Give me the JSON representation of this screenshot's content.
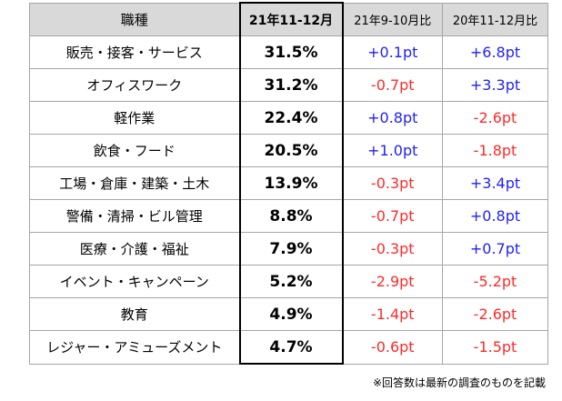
{
  "colors": {
    "header_bg": "#d9d9d9",
    "positive": "#1f1fff",
    "negative": "#ff2a2a",
    "border": "#a6a6a6"
  },
  "table": {
    "headers": [
      "職種",
      "21年11-12月",
      "21年9-10月比",
      "20年11-12月比"
    ],
    "rows": [
      {
        "job": "販売・接客・サービス",
        "share": "31.5%",
        "vs_prev": "+0.1pt",
        "vs_year": "+6.8pt"
      },
      {
        "job": "オフィスワーク",
        "share": "31.2%",
        "vs_prev": "-0.7pt",
        "vs_year": "+3.3pt"
      },
      {
        "job": "軽作業",
        "share": "22.4%",
        "vs_prev": "+0.8pt",
        "vs_year": "-2.6pt"
      },
      {
        "job": "飲食・フード",
        "share": "20.5%",
        "vs_prev": "+1.0pt",
        "vs_year": "-1.8pt"
      },
      {
        "job": "工場・倉庫・建築・土木",
        "share": "13.9%",
        "vs_prev": "-0.3pt",
        "vs_year": "+3.4pt"
      },
      {
        "job": "警備・清掃・ビル管理",
        "share": "8.8%",
        "vs_prev": "-0.7pt",
        "vs_year": "+0.8pt"
      },
      {
        "job": "医療・介護・福祉",
        "share": "7.9%",
        "vs_prev": "-0.3pt",
        "vs_year": "+0.7pt"
      },
      {
        "job": "イベント・キャンペーン",
        "share": "5.2%",
        "vs_prev": "-2.9pt",
        "vs_year": "-5.2pt"
      },
      {
        "job": "教育",
        "share": "4.9%",
        "vs_prev": "-1.4pt",
        "vs_year": "-2.6pt"
      },
      {
        "job": "レジャー・アミューズメント",
        "share": "4.7%",
        "vs_prev": "-0.6pt",
        "vs_year": "-1.5pt"
      }
    ]
  },
  "footnote": "※回答数は最新の調査のものを記載"
}
